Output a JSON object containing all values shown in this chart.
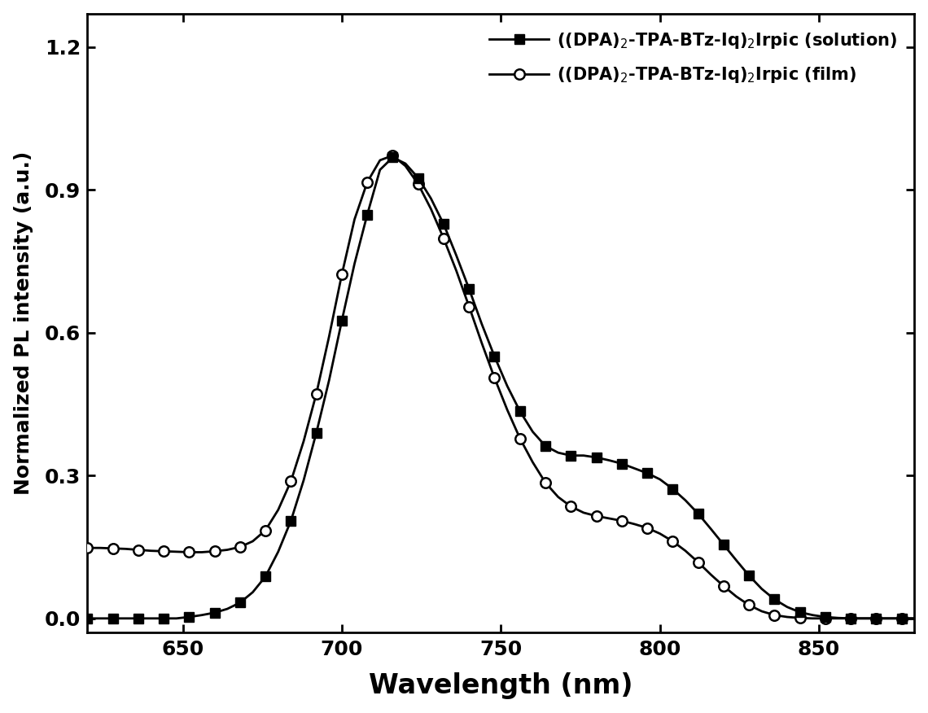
{
  "solution_x": [
    620,
    624,
    628,
    632,
    636,
    640,
    644,
    648,
    652,
    656,
    660,
    664,
    668,
    672,
    676,
    680,
    684,
    688,
    692,
    696,
    700,
    704,
    708,
    712,
    716,
    720,
    724,
    728,
    732,
    736,
    740,
    744,
    748,
    752,
    756,
    760,
    764,
    768,
    772,
    776,
    780,
    784,
    788,
    792,
    796,
    800,
    804,
    808,
    812,
    816,
    820,
    824,
    828,
    832,
    836,
    840,
    844,
    848,
    852,
    856,
    860,
    864,
    868,
    872,
    876,
    880
  ],
  "solution_y": [
    0.0,
    0.0,
    0.0,
    0.0,
    0.0,
    0.0,
    0.0,
    0.0,
    0.003,
    0.007,
    0.012,
    0.02,
    0.033,
    0.055,
    0.088,
    0.14,
    0.205,
    0.29,
    0.39,
    0.5,
    0.625,
    0.745,
    0.848,
    0.942,
    0.968,
    0.955,
    0.925,
    0.882,
    0.828,
    0.762,
    0.692,
    0.618,
    0.55,
    0.488,
    0.435,
    0.392,
    0.362,
    0.348,
    0.342,
    0.342,
    0.338,
    0.332,
    0.325,
    0.315,
    0.305,
    0.292,
    0.272,
    0.248,
    0.22,
    0.188,
    0.155,
    0.122,
    0.09,
    0.062,
    0.04,
    0.024,
    0.013,
    0.007,
    0.003,
    0.001,
    0.0,
    0.0,
    0.0,
    0.0,
    0.0,
    0.0
  ],
  "film_x": [
    620,
    624,
    628,
    632,
    636,
    640,
    644,
    648,
    652,
    656,
    660,
    664,
    668,
    672,
    676,
    680,
    684,
    688,
    692,
    696,
    700,
    704,
    708,
    712,
    716,
    720,
    724,
    728,
    732,
    736,
    740,
    744,
    748,
    752,
    756,
    760,
    764,
    768,
    772,
    776,
    780,
    784,
    788,
    792,
    796,
    800,
    804,
    808,
    812,
    816,
    820,
    824,
    828,
    832,
    836,
    840,
    844,
    848,
    852,
    856,
    860,
    864,
    868,
    872,
    876,
    880
  ],
  "film_y": [
    0.148,
    0.148,
    0.147,
    0.146,
    0.144,
    0.142,
    0.141,
    0.14,
    0.139,
    0.139,
    0.141,
    0.144,
    0.15,
    0.162,
    0.185,
    0.228,
    0.288,
    0.372,
    0.472,
    0.592,
    0.722,
    0.838,
    0.916,
    0.962,
    0.972,
    0.95,
    0.912,
    0.86,
    0.798,
    0.73,
    0.655,
    0.578,
    0.505,
    0.438,
    0.378,
    0.328,
    0.285,
    0.255,
    0.235,
    0.222,
    0.215,
    0.21,
    0.205,
    0.198,
    0.19,
    0.178,
    0.162,
    0.142,
    0.118,
    0.092,
    0.068,
    0.046,
    0.028,
    0.015,
    0.007,
    0.003,
    0.001,
    0.0,
    0.0,
    0.0,
    0.0,
    0.0,
    0.0,
    0.0,
    0.0,
    0.0
  ],
  "xlabel": "Wavelength (nm)",
  "ylabel": "Normalized PL intensity (a.u.)",
  "xlim": [
    620,
    880
  ],
  "ylim": [
    -0.03,
    1.27
  ],
  "yticks": [
    0.0,
    0.3,
    0.6,
    0.9,
    1.2
  ],
  "xticks": [
    650,
    700,
    750,
    800,
    850
  ],
  "legend_solution": "((DPA)$_2$-TPA-BTz-Iq)$_2$Irpic (solution)",
  "legend_film": "((DPA)$_2$-TPA-BTz-Iq)$_2$Irpic (film)",
  "line_color": "#000000",
  "marker_size": 8,
  "linewidth": 2.0,
  "markevery": 2
}
